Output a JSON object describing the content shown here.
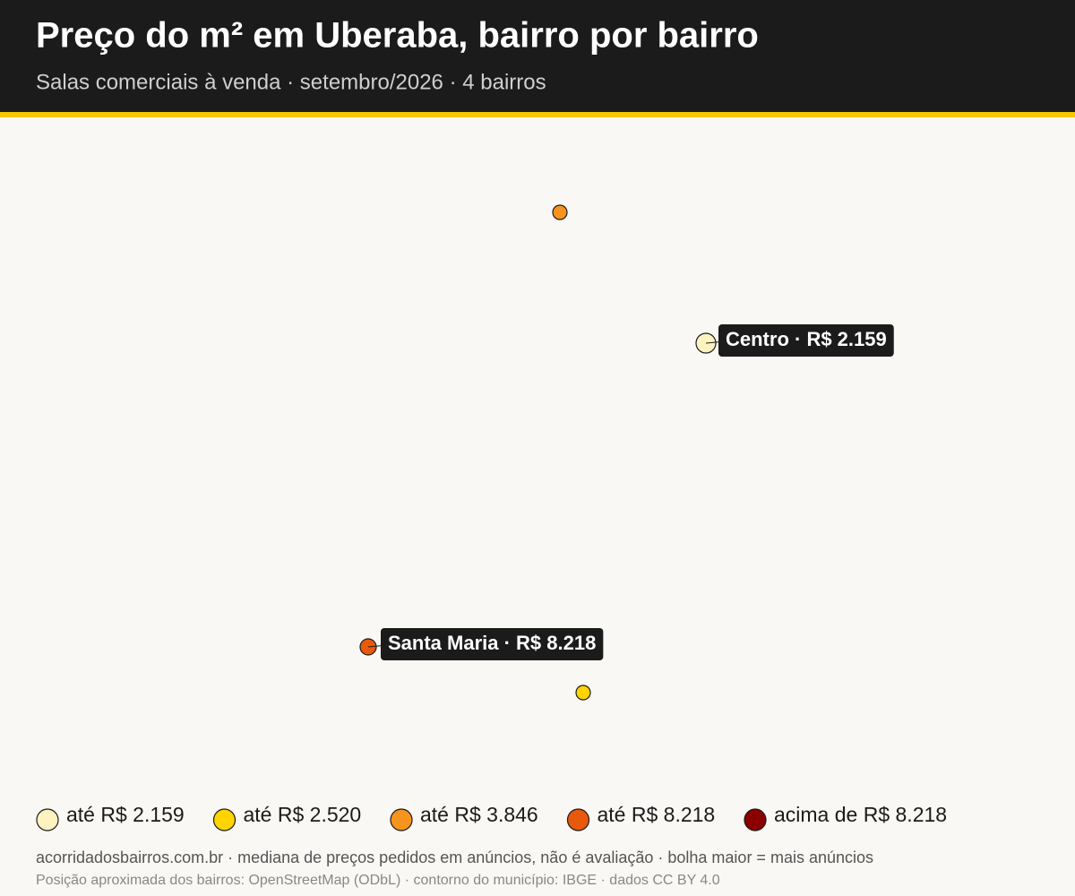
{
  "header": {
    "title": "Preço do m² em Uberaba, bairro por bairro",
    "subtitle": "Salas comerciais à venda · setembro/2026 · 4 bairros"
  },
  "points": [
    {
      "color": "#f7941d"
    },
    {
      "color": "#fdf3c0",
      "label": "Centro · R$ 2.159"
    },
    {
      "color": "#e8590c",
      "label": "Santa Maria · R$ 8.218"
    },
    {
      "color": "#ffd400"
    }
  ],
  "legend": [
    {
      "color": "#fdf3c0",
      "label": "até R$ 2.159"
    },
    {
      "color": "#ffd400",
      "label": "até R$ 2.520"
    },
    {
      "color": "#f7941d",
      "label": "até R$ 3.846"
    },
    {
      "color": "#e8590c",
      "label": "até R$ 8.218"
    },
    {
      "color": "#8b0000",
      "label": "acima de R$ 8.218"
    }
  ],
  "footer": {
    "line1": "acorridadosbairros.com.br · mediana de preços pedidos em anúncios, não é avaliação · bolha maior = mais anúncios",
    "line2": "Posição aproximada dos bairros: OpenStreetMap (ODbL) · contorno do município: IBGE · dados CC BY 4.0"
  }
}
